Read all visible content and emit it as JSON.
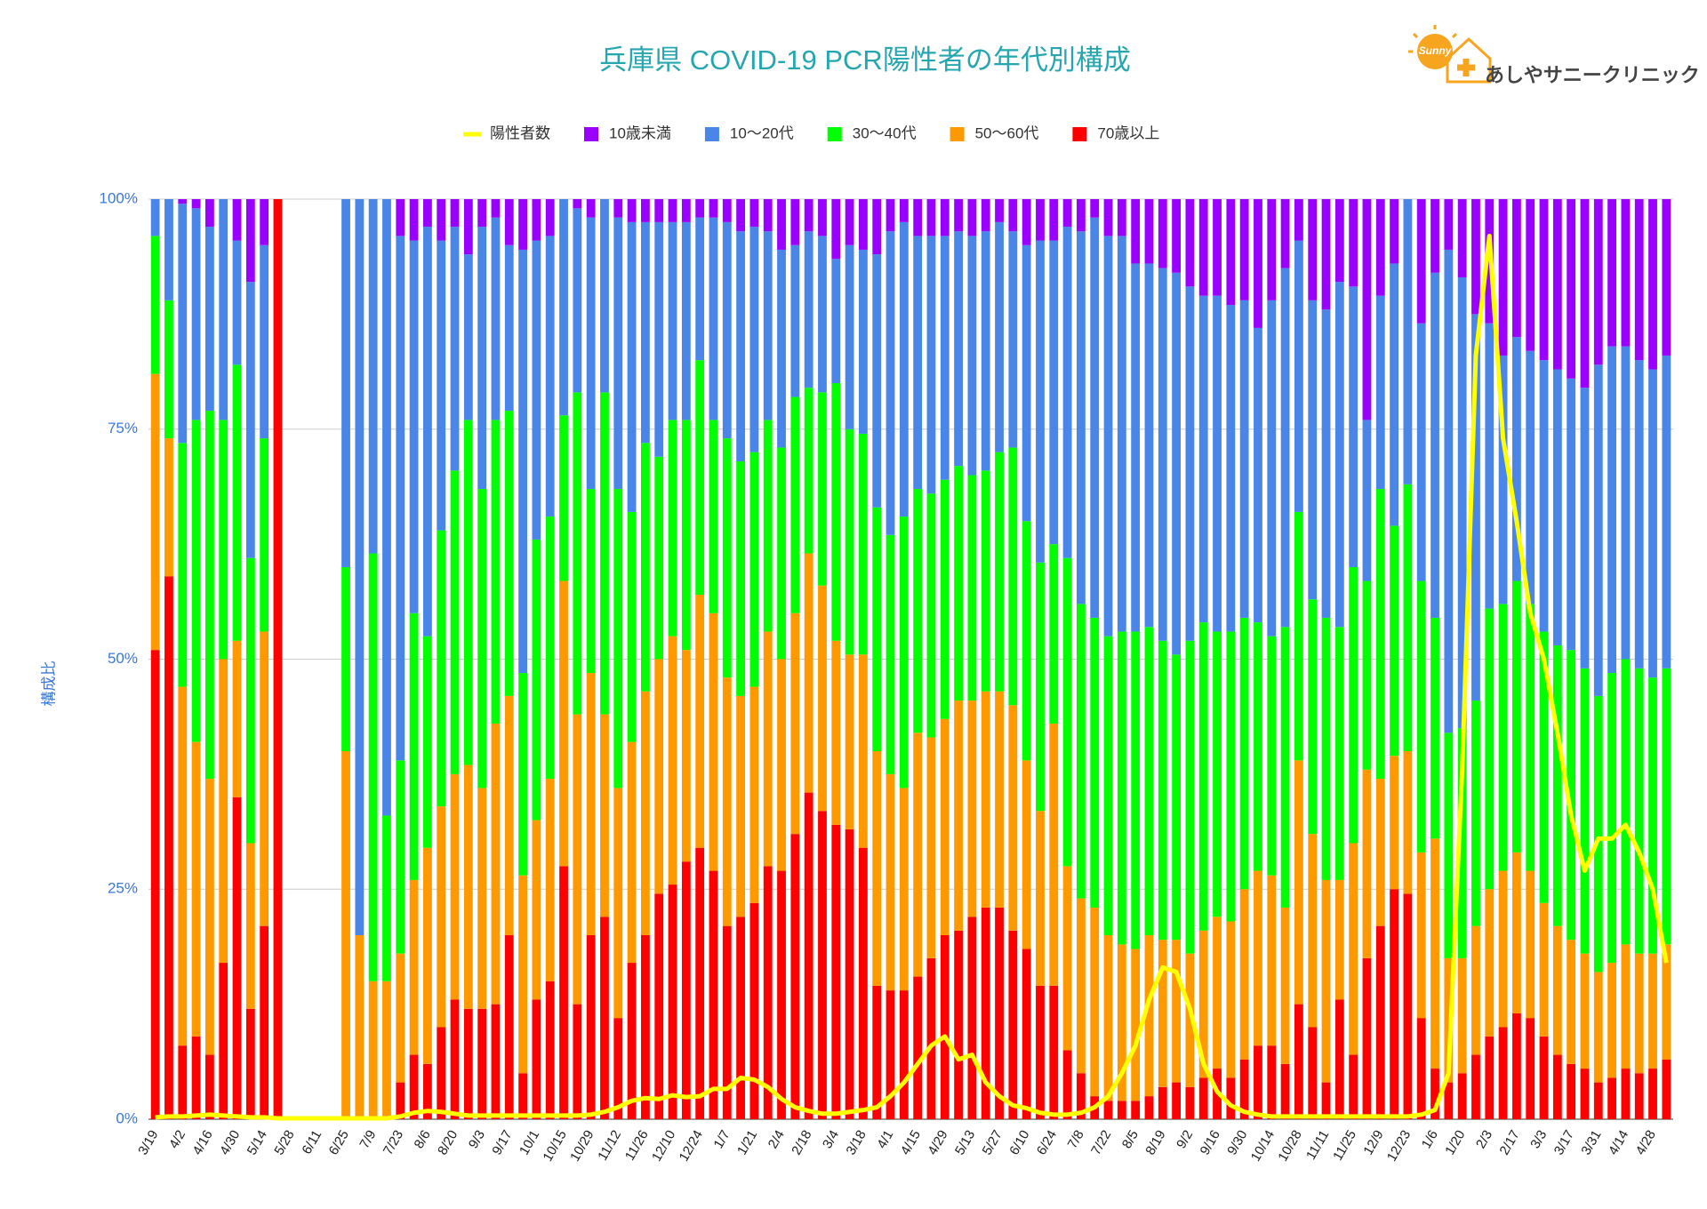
{
  "logo": {
    "badge": "Sunny",
    "text": "あしやサニークリニック"
  },
  "chart_data": {
    "type": "bar",
    "stacked": true,
    "title": "兵庫県  COVID-19 PCR陽性者の年代別構成",
    "ylabel": "構成比",
    "ylim": [
      0,
      100
    ],
    "yticks": [
      {
        "value": 0,
        "label": "0%"
      },
      {
        "value": 25,
        "label": "25%"
      },
      {
        "value": 50,
        "label": "50%"
      },
      {
        "value": 75,
        "label": "75%"
      },
      {
        "value": 100,
        "label": "100%"
      }
    ],
    "grid": true,
    "legend": "top",
    "categories": [
      "3/19",
      null,
      "4/2",
      null,
      "4/16",
      null,
      "4/30",
      null,
      "5/14",
      null,
      "5/28",
      null,
      "6/11",
      null,
      "6/25",
      null,
      "7/9",
      null,
      "7/23",
      null,
      "8/6",
      null,
      "8/20",
      null,
      "9/3",
      null,
      "9/17",
      null,
      "10/1",
      null,
      "10/15",
      null,
      "10/29",
      null,
      "11/12",
      null,
      "11/26",
      null,
      "12/10",
      null,
      "12/24",
      null,
      "1/7",
      null,
      "1/21",
      null,
      "2/4",
      null,
      "2/18",
      null,
      "3/4",
      null,
      "3/18",
      null,
      "4/1",
      null,
      "4/15",
      null,
      "4/29",
      null,
      "5/13",
      null,
      "5/27",
      null,
      "6/10",
      null,
      "6/24",
      null,
      "7/8",
      null,
      "7/22",
      null,
      "8/5",
      null,
      "8/19",
      null,
      "9/2",
      null,
      "9/16",
      null,
      "9/30",
      null,
      "10/14",
      null,
      "10/28",
      null,
      "11/11",
      null,
      "11/25",
      null,
      "12/9",
      null,
      "12/23",
      null,
      "1/6",
      null,
      "1/20",
      null,
      "2/3",
      null,
      "2/17",
      null,
      "3/3",
      null,
      "3/17",
      null,
      "3/31",
      null,
      "4/14",
      null,
      "4/28",
      null
    ],
    "series": [
      {
        "name": "陽性者数",
        "type": "line",
        "color": "#ffff00",
        "values": [
          0.2,
          0.3,
          0.3,
          0.4,
          0.5,
          0.4,
          0.3,
          0.2,
          0.2,
          0.1,
          0.1,
          0.1,
          0.1,
          0.1,
          0.1,
          0.1,
          0.1,
          0.1,
          0.3,
          0.7,
          0.9,
          0.8,
          0.6,
          0.4,
          0.4,
          0.4,
          0.4,
          0.4,
          0.4,
          0.4,
          0.4,
          0.4,
          0.5,
          0.8,
          1.3,
          2,
          2.3,
          2.2,
          2.6,
          2.4,
          2.5,
          3.3,
          3.3,
          4.5,
          4.3,
          3.5,
          2.2,
          1.3,
          0.9,
          0.6,
          0.6,
          0.8,
          1,
          1.3,
          2.5,
          4,
          6,
          8,
          9,
          6.5,
          7,
          4,
          2.5,
          1.5,
          1.2,
          0.7,
          0.5,
          0.5,
          0.7,
          1.3,
          2.5,
          5,
          8,
          13,
          16.5,
          16,
          12,
          6,
          3,
          1.5,
          0.8,
          0.5,
          0.3,
          0.3,
          0.3,
          0.3,
          0.3,
          0.3,
          0.3,
          0.3,
          0.3,
          0.3,
          0.3,
          0.5,
          1,
          5,
          38,
          83,
          96,
          74,
          65,
          55,
          50,
          42,
          33,
          27,
          30.5,
          30.5,
          32,
          29,
          25,
          17
        ]
      },
      {
        "name": "10歳未満",
        "color": "#9900ff",
        "values": [
          0,
          0,
          0.5,
          1,
          3,
          0,
          4.5,
          9,
          5,
          0,
          0,
          0,
          0,
          0,
          0,
          0,
          0,
          0,
          4,
          4.5,
          3,
          4.5,
          3,
          6,
          3,
          2,
          5,
          5.5,
          4.5,
          4,
          0,
          1,
          2,
          0,
          2,
          2.5,
          2.5,
          2.5,
          2.5,
          2.5,
          2,
          2,
          2.5,
          3.5,
          3,
          3.5,
          5.5,
          5,
          3.5,
          4,
          6.5,
          5,
          5.5,
          6,
          3.5,
          2.5,
          4,
          4,
          4,
          3.5,
          4,
          3.5,
          2.5,
          3.5,
          5,
          4.5,
          4.5,
          3,
          3.5,
          2,
          4,
          4,
          7,
          7,
          7.5,
          8,
          9.5,
          10.5,
          10.5,
          11.5,
          11,
          14,
          11,
          7.5,
          4.5,
          11,
          12,
          9,
          9.5,
          24,
          10.5,
          7,
          0,
          13.5,
          8,
          5.5,
          8.5,
          12.5,
          13.5,
          17,
          15,
          16.5,
          17.5,
          18.5,
          19.5,
          20.5,
          18,
          16,
          16,
          17.5,
          18.5,
          17
        ]
      },
      {
        "name": "10〜20代",
        "color": "#4a86e8",
        "values": [
          4,
          11,
          26,
          23,
          20,
          24,
          13.5,
          30,
          21,
          0,
          0,
          0,
          0,
          0,
          40,
          80,
          38.5,
          67,
          57,
          40.5,
          44.5,
          31.5,
          26.5,
          18,
          28.5,
          22,
          18,
          46,
          32.5,
          30.5,
          23.5,
          20,
          29.5,
          21,
          29.5,
          31.5,
          24,
          25.5,
          21.5,
          21.5,
          15.5,
          22,
          23.5,
          25,
          24.5,
          20.5,
          21.5,
          16.5,
          17,
          17,
          13.5,
          20,
          20,
          27.5,
          33,
          32,
          27.5,
          28,
          26.5,
          25.5,
          26,
          26,
          25,
          23.5,
          30,
          35,
          33,
          36,
          40.5,
          43.5,
          43.5,
          43,
          40,
          39.5,
          40.5,
          41.5,
          38.5,
          35.5,
          36.5,
          35.5,
          34.5,
          32,
          36.5,
          39,
          29.5,
          32.5,
          33.5,
          37.5,
          30.5,
          17.5,
          21,
          28.5,
          31,
          28,
          37.5,
          52.5,
          49,
          42,
          31,
          27,
          26.5,
          27.5,
          29.5,
          30,
          29.5,
          30.5,
          36,
          35.5,
          34,
          33.5,
          33.5,
          34
        ]
      },
      {
        "name": "30〜40代",
        "color": "#00ff00",
        "values": [
          15,
          15,
          26.5,
          35,
          40,
          26,
          30,
          31,
          21,
          0,
          0,
          0,
          0,
          0,
          20,
          0,
          46.5,
          18,
          21,
          29,
          23,
          30,
          33,
          37.5,
          32.5,
          33,
          31,
          22,
          30.5,
          28.5,
          18,
          35,
          20,
          35,
          32.5,
          25,
          27,
          22,
          23.5,
          25,
          25.5,
          21,
          26,
          25.5,
          25.5,
          23,
          23,
          23.5,
          18,
          21,
          28,
          24.5,
          24,
          26.5,
          26,
          29.5,
          26.5,
          26.5,
          26,
          25.5,
          24.5,
          24,
          26,
          28,
          26,
          27,
          19.5,
          33.5,
          32,
          31.5,
          32.5,
          34,
          34.5,
          33.5,
          32.5,
          31,
          34,
          33.5,
          31,
          31.5,
          29.5,
          27,
          26,
          30.5,
          27,
          25.5,
          28.5,
          27.5,
          30,
          20.5,
          31.5,
          25,
          29,
          29.5,
          24,
          24.5,
          25,
          24.5,
          30.5,
          29,
          29.5,
          29,
          29.5,
          30.5,
          31.5,
          31,
          30,
          31.5,
          31,
          31,
          30,
          30
        ]
      },
      {
        "name": "50〜60代",
        "color": "#ff9900",
        "values": [
          30,
          15,
          39,
          32,
          30,
          33,
          17,
          18,
          32,
          0,
          0,
          0,
          0,
          0,
          40,
          20,
          15,
          15,
          14,
          19,
          23.5,
          24,
          24.5,
          26.5,
          24,
          30.5,
          26,
          21.5,
          19.5,
          22,
          31,
          31.5,
          28.5,
          22,
          25,
          24,
          26.5,
          25.5,
          27,
          23,
          27.5,
          28,
          27,
          24,
          23.5,
          25.5,
          23,
          24,
          26,
          24.5,
          20,
          19,
          21,
          25.5,
          23.5,
          22,
          26.5,
          24,
          23.5,
          25,
          23.5,
          23.5,
          23.5,
          24.5,
          20.5,
          19,
          28.5,
          20,
          19,
          20.5,
          18,
          17,
          16.5,
          17.5,
          16,
          15.5,
          14.5,
          16,
          16.5,
          17,
          18.5,
          19,
          18.5,
          17,
          26.5,
          21,
          22,
          13,
          23,
          20.5,
          16,
          14.5,
          15.5,
          18,
          25,
          13.5,
          12.5,
          14,
          16,
          17,
          17.5,
          16,
          14.5,
          14,
          13.5,
          12.5,
          12,
          12.5,
          13.5,
          13,
          12.5,
          12.5
        ]
      },
      {
        "name": "70歳以上",
        "color": "#ff0000",
        "values": [
          51,
          59,
          8,
          9,
          7,
          17,
          35,
          12,
          21,
          100,
          0,
          0,
          0,
          0,
          0,
          0,
          0,
          0,
          4,
          7,
          6,
          10,
          13,
          12,
          12,
          12.5,
          20,
          5,
          13,
          15,
          27.5,
          12.5,
          20,
          22,
          11,
          17,
          20,
          24.5,
          25.5,
          28,
          29.5,
          27,
          21,
          22,
          23.5,
          27.5,
          27,
          31,
          35.5,
          33.5,
          32,
          31.5,
          29.5,
          14.5,
          14,
          14,
          15.5,
          17.5,
          20,
          20.5,
          22,
          23,
          23,
          20.5,
          18.5,
          14.5,
          14.5,
          7.5,
          5,
          2.5,
          2,
          2,
          2,
          2.5,
          3.5,
          4,
          3.5,
          4.5,
          5.5,
          4.5,
          6.5,
          8,
          8,
          6,
          12.5,
          10,
          4,
          13,
          7,
          17.5,
          21,
          25,
          24.5,
          11,
          5.5,
          4,
          5,
          7,
          9,
          10,
          11.5,
          11,
          9,
          7,
          6,
          5.5,
          4,
          4.5,
          5.5,
          5,
          5.5,
          6.5
        ]
      }
    ]
  }
}
